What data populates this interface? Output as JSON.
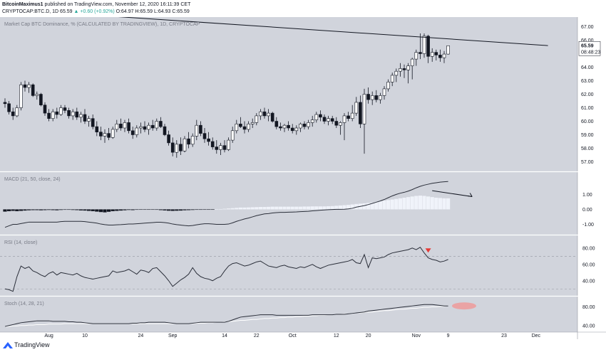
{
  "header": {
    "author": "BitcoinMaximus1",
    "published_text": "published on TradingView.com, November 12, 2020 16:11:39 CET",
    "symbol": "CRYPTOCAP:BTC.D, 1D",
    "last": "65.59",
    "change": "+0.60 (+0.92%)",
    "o": "O:64.97",
    "h": "H:65.59",
    "l": "L:64.93",
    "c": "C:65.59"
  },
  "footer": {
    "brand": "TradingView"
  },
  "colors": {
    "background": "#d1d4dc",
    "candle_outline": "#131722",
    "bull_fill": "#ffffff",
    "bear_fill": "#131722",
    "indicator_line": "#2a2e39",
    "signal_line": "#ffffff",
    "annotation_red": "#e53935",
    "ellipse_red": "#ef9a9a"
  },
  "chart_data": [
    {
      "type": "candlestick",
      "title": "Market Cap BTC Dominance, % (CALCULATED BY TRADINGVIEW), 1D, CRYPTOCAP",
      "price_label": "65.59",
      "timer_label": "08:48:23",
      "ylim": [
        56.5,
        67.5
      ],
      "yticks": [
        "57.00",
        "58.00",
        "59.00",
        "60.00",
        "61.00",
        "62.00",
        "63.00",
        "64.00",
        "65.00",
        "66.00",
        "67.00"
      ],
      "x_labels": [
        {
          "label": "Aug",
          "index": 11
        },
        {
          "label": "10",
          "index": 20
        },
        {
          "label": "24",
          "index": 34
        },
        {
          "label": "Sep",
          "index": 42
        },
        {
          "label": "14",
          "index": 55
        },
        {
          "label": "22",
          "index": 63
        },
        {
          "label": "Oct",
          "index": 72
        },
        {
          "label": "12",
          "index": 83
        },
        {
          "label": "20",
          "index": 91
        },
        {
          "label": "Nov",
          "index": 103
        },
        {
          "label": "9",
          "index": 111
        },
        {
          "label": "23",
          "index": 125
        },
        {
          "label": "Dec",
          "index": 133
        }
      ],
      "candles": [
        [
          61.4,
          61.7,
          61.0,
          61.3
        ],
        [
          61.3,
          61.5,
          60.5,
          60.7
        ],
        [
          60.7,
          61.0,
          60.1,
          60.4
        ],
        [
          60.4,
          61.2,
          60.3,
          61.0
        ],
        [
          61.0,
          62.9,
          60.8,
          62.7
        ],
        [
          62.7,
          63.0,
          62.2,
          62.5
        ],
        [
          62.5,
          62.9,
          62.1,
          62.7
        ],
        [
          62.7,
          62.8,
          61.8,
          61.9
        ],
        [
          61.9,
          62.2,
          61.6,
          62.0
        ],
        [
          62.0,
          62.1,
          61.1,
          61.2
        ],
        [
          61.2,
          61.4,
          60.4,
          60.6
        ],
        [
          60.6,
          60.9,
          60.0,
          60.2
        ],
        [
          60.2,
          60.9,
          60.0,
          60.7
        ],
        [
          60.7,
          61.0,
          60.2,
          60.5
        ],
        [
          60.5,
          61.2,
          60.4,
          61.0
        ],
        [
          61.0,
          61.2,
          60.6,
          60.8
        ],
        [
          60.8,
          61.0,
          60.2,
          60.4
        ],
        [
          60.4,
          60.9,
          60.1,
          60.7
        ],
        [
          60.7,
          61.0,
          60.1,
          60.3
        ],
        [
          60.3,
          60.7,
          59.9,
          60.5
        ],
        [
          60.5,
          60.9,
          59.8,
          60.0
        ],
        [
          60.0,
          60.4,
          59.6,
          60.2
        ],
        [
          60.2,
          60.5,
          59.4,
          59.6
        ],
        [
          59.6,
          60.0,
          58.9,
          59.2
        ],
        [
          59.2,
          59.6,
          58.6,
          58.9
        ],
        [
          58.9,
          59.4,
          58.4,
          59.1
        ],
        [
          59.1,
          59.5,
          58.6,
          58.8
        ],
        [
          58.8,
          59.6,
          58.7,
          59.4
        ],
        [
          59.4,
          60.1,
          59.2,
          59.8
        ],
        [
          59.8,
          60.2,
          59.3,
          59.5
        ],
        [
          59.5,
          60.1,
          59.2,
          59.9
        ],
        [
          59.9,
          60.2,
          59.1,
          59.3
        ],
        [
          59.3,
          59.6,
          58.7,
          59.0
        ],
        [
          59.0,
          59.7,
          58.8,
          59.5
        ],
        [
          59.5,
          59.9,
          59.1,
          59.6
        ],
        [
          59.6,
          60.0,
          59.2,
          59.4
        ],
        [
          59.4,
          59.9,
          59.0,
          59.7
        ],
        [
          59.7,
          60.1,
          59.3,
          59.5
        ],
        [
          59.5,
          60.2,
          59.3,
          60.0
        ],
        [
          60.0,
          60.3,
          59.5,
          59.6
        ],
        [
          59.6,
          59.8,
          58.9,
          59.0
        ],
        [
          59.0,
          59.3,
          58.2,
          58.4
        ],
        [
          58.4,
          58.8,
          57.4,
          57.7
        ],
        [
          57.7,
          58.6,
          57.3,
          58.3
        ],
        [
          58.3,
          58.8,
          57.5,
          57.8
        ],
        [
          57.8,
          58.9,
          57.7,
          58.7
        ],
        [
          58.7,
          59.2,
          58.0,
          58.3
        ],
        [
          58.3,
          59.1,
          58.1,
          58.9
        ],
        [
          58.9,
          60.1,
          58.6,
          59.7
        ],
        [
          59.7,
          60.0,
          58.9,
          59.1
        ],
        [
          59.1,
          59.5,
          58.4,
          58.7
        ],
        [
          58.7,
          59.2,
          58.2,
          58.5
        ],
        [
          58.5,
          58.8,
          57.9,
          58.1
        ],
        [
          58.1,
          58.6,
          57.6,
          57.9
        ],
        [
          57.9,
          58.4,
          57.5,
          58.2
        ],
        [
          58.2,
          58.6,
          57.7,
          57.9
        ],
        [
          57.9,
          58.8,
          57.8,
          58.6
        ],
        [
          58.6,
          59.6,
          58.4,
          59.3
        ],
        [
          59.3,
          60.1,
          59.1,
          59.8
        ],
        [
          59.8,
          60.3,
          59.5,
          59.6
        ],
        [
          59.6,
          60.0,
          59.1,
          59.4
        ],
        [
          59.4,
          60.0,
          59.2,
          59.8
        ],
        [
          59.8,
          60.2,
          59.5,
          59.9
        ],
        [
          59.9,
          60.6,
          59.7,
          60.4
        ],
        [
          60.4,
          60.9,
          60.1,
          60.7
        ],
        [
          60.7,
          61.0,
          60.2,
          60.4
        ],
        [
          60.4,
          60.9,
          60.0,
          60.6
        ],
        [
          60.6,
          60.7,
          59.9,
          60.0
        ],
        [
          60.0,
          60.3,
          59.4,
          59.6
        ],
        [
          59.6,
          59.9,
          59.3,
          59.5
        ],
        [
          59.5,
          59.8,
          59.2,
          59.7
        ],
        [
          59.7,
          60.0,
          59.3,
          59.5
        ],
        [
          59.5,
          59.8,
          59.1,
          59.3
        ],
        [
          59.3,
          59.7,
          59.0,
          59.5
        ],
        [
          59.5,
          59.9,
          59.2,
          59.8
        ],
        [
          59.8,
          60.0,
          59.4,
          59.6
        ],
        [
          59.6,
          60.1,
          59.4,
          59.9
        ],
        [
          59.9,
          60.4,
          59.6,
          60.1
        ],
        [
          60.1,
          60.7,
          59.9,
          60.5
        ],
        [
          60.5,
          60.8,
          60.0,
          60.3
        ],
        [
          60.3,
          60.5,
          59.8,
          60.0
        ],
        [
          60.0,
          60.4,
          59.7,
          60.2
        ],
        [
          60.2,
          60.4,
          59.8,
          60.0
        ],
        [
          60.0,
          60.3,
          59.5,
          59.7
        ],
        [
          59.7,
          60.0,
          59.0,
          59.9
        ],
        [
          59.9,
          60.6,
          58.6,
          60.4
        ],
        [
          60.4,
          60.7,
          60.0,
          60.2
        ],
        [
          60.2,
          61.2,
          60.0,
          60.6
        ],
        [
          60.6,
          61.8,
          60.4,
          61.4
        ],
        [
          61.4,
          61.9,
          59.5,
          59.8
        ],
        [
          59.8,
          62.4,
          57.6,
          62.0
        ],
        [
          62.0,
          62.5,
          61.3,
          61.6
        ],
        [
          61.6,
          62.2,
          61.2,
          61.9
        ],
        [
          61.9,
          62.3,
          61.4,
          61.6
        ],
        [
          61.6,
          62.1,
          61.3,
          61.9
        ],
        [
          61.9,
          62.6,
          61.6,
          62.4
        ],
        [
          62.4,
          63.1,
          62.2,
          62.9
        ],
        [
          62.9,
          63.6,
          62.6,
          63.4
        ],
        [
          63.4,
          63.9,
          62.9,
          63.7
        ],
        [
          63.7,
          64.3,
          63.3,
          63.9
        ],
        [
          63.9,
          64.2,
          63.2,
          63.8
        ],
        [
          63.8,
          64.3,
          62.8,
          64.1
        ],
        [
          64.1,
          64.7,
          63.1,
          64.6
        ],
        [
          64.6,
          65.3,
          64.1,
          65.1
        ],
        [
          65.1,
          66.5,
          64.6,
          65.0
        ],
        [
          65.0,
          66.5,
          64.7,
          66.3
        ],
        [
          66.3,
          66.4,
          64.3,
          64.8
        ],
        [
          64.8,
          65.4,
          64.4,
          65.1
        ],
        [
          65.1,
          65.3,
          64.5,
          64.9
        ],
        [
          64.9,
          65.3,
          64.4,
          64.7
        ],
        [
          64.7,
          65.2,
          64.3,
          64.97
        ],
        [
          64.97,
          65.59,
          64.93,
          65.59
        ]
      ],
      "trendline": [
        [
          0,
          68.3
        ],
        [
          136,
          65.6
        ]
      ]
    },
    {
      "type": "macd",
      "title": "MACD (21, 50, close, 24)",
      "ylim": [
        -1.5,
        2.3
      ],
      "yticks": [
        "1.00",
        "0.00",
        "-1.00"
      ],
      "macd": [
        -1.2,
        -1.1,
        -1.0,
        -1.0,
        -0.95,
        -0.9,
        -0.85,
        -0.85,
        -0.85,
        -0.85,
        -0.85,
        -0.85,
        -0.85,
        -0.85,
        -0.82,
        -0.8,
        -0.8,
        -0.8,
        -0.8,
        -0.8,
        -0.82,
        -0.85,
        -0.88,
        -0.92,
        -0.98,
        -1.02,
        -1.05,
        -1.05,
        -1.03,
        -1.02,
        -1.0,
        -0.98,
        -0.98,
        -0.96,
        -0.94,
        -0.92,
        -0.9,
        -0.88,
        -0.86,
        -0.86,
        -0.88,
        -0.92,
        -0.98,
        -1.02,
        -1.05,
        -1.08,
        -1.1,
        -1.08,
        -1.03,
        -0.99,
        -0.96,
        -0.96,
        -0.98,
        -1.0,
        -1.0,
        -1.0,
        -0.98,
        -0.9,
        -0.8,
        -0.72,
        -0.64,
        -0.58,
        -0.5,
        -0.42,
        -0.36,
        -0.3,
        -0.28,
        -0.24,
        -0.22,
        -0.2,
        -0.2,
        -0.19,
        -0.18,
        -0.17,
        -0.15,
        -0.14,
        -0.13,
        -0.1,
        -0.08,
        -0.06,
        -0.04,
        -0.02,
        -0.01,
        0.0,
        0.0,
        0.01,
        0.03,
        0.07,
        0.15,
        0.2,
        0.25,
        0.32,
        0.4,
        0.48,
        0.56,
        0.66,
        0.78,
        0.9,
        1.0,
        1.08,
        1.14,
        1.22,
        1.32,
        1.44,
        1.54,
        1.62,
        1.68,
        1.74,
        1.78,
        1.82,
        1.84,
        1.86
      ],
      "histogram": [
        -0.15,
        -0.12,
        -0.1,
        -0.12,
        -0.1,
        -0.08,
        -0.06,
        -0.05,
        -0.05,
        -0.06,
        -0.05,
        -0.04,
        -0.05,
        -0.06,
        -0.04,
        -0.03,
        -0.03,
        -0.04,
        -0.05,
        -0.07,
        -0.08,
        -0.1,
        -0.12,
        -0.15,
        -0.18,
        -0.2,
        -0.16,
        -0.12,
        -0.1,
        -0.08,
        -0.06,
        -0.04,
        -0.05,
        -0.03,
        -0.02,
        -0.02,
        -0.01,
        -0.02,
        -0.03,
        -0.05,
        -0.07,
        -0.09,
        -0.1,
        -0.09,
        -0.08,
        -0.06,
        -0.05,
        -0.04,
        -0.03,
        -0.03,
        -0.02,
        -0.02,
        -0.01,
        0.0,
        0.02,
        0.04,
        0.06,
        0.08,
        0.1,
        0.12,
        0.12,
        0.13,
        0.14,
        0.15,
        0.16,
        0.16,
        0.17,
        0.18,
        0.18,
        0.18,
        0.18,
        0.18,
        0.18,
        0.18,
        0.18,
        0.19,
        0.19,
        0.2,
        0.2,
        0.2,
        0.2,
        0.21,
        0.22,
        0.24,
        0.26,
        0.28,
        0.3,
        0.33,
        0.36,
        0.38,
        0.4,
        0.43,
        0.46,
        0.5,
        0.54,
        0.58,
        0.62,
        0.66,
        0.7,
        0.74,
        0.78,
        0.82,
        0.86,
        0.9,
        0.92,
        0.9,
        0.86,
        0.82,
        0.78,
        0.76,
        0.74,
        0.74
      ],
      "arrow": {
        "from": [
          107,
          1.25
        ],
        "to": [
          117,
          0.85
        ]
      }
    },
    {
      "type": "line",
      "title": "RSI (14, close)",
      "ylim": [
        25,
        92
      ],
      "yticks": [
        "80.00",
        "60.00",
        "40.00"
      ],
      "bands": [
        70,
        30
      ],
      "values": [
        30,
        29,
        27,
        45,
        58,
        55,
        57,
        52,
        50,
        47,
        45,
        49,
        51,
        47,
        50,
        49,
        48,
        47,
        49,
        46,
        44,
        43,
        42,
        43,
        44,
        45,
        46,
        52,
        50,
        51,
        52,
        54,
        51,
        48,
        53,
        52,
        50,
        55,
        56,
        51,
        46,
        40,
        33,
        37,
        41,
        44,
        48,
        56,
        49,
        45,
        43,
        42,
        40,
        43,
        45,
        52,
        58,
        61,
        62,
        60,
        58,
        59,
        61,
        63,
        64,
        61,
        58,
        57,
        56,
        58,
        59,
        57,
        56,
        55,
        57,
        56,
        58,
        60,
        57,
        55,
        57,
        59,
        60,
        61,
        62,
        63,
        64,
        66,
        62,
        61,
        72,
        56,
        68,
        67,
        68,
        69,
        72,
        74,
        75,
        76,
        77,
        78,
        80,
        78,
        81,
        74,
        68,
        66,
        65,
        63,
        64,
        66
      ],
      "marker": {
        "index": 106,
        "value": 77
      }
    },
    {
      "type": "line",
      "title": "Stoch (14, 28, 21)",
      "ylim": [
        32,
        96
      ],
      "yticks": [
        "80.00",
        "40.00"
      ],
      "k": [
        38,
        40,
        42,
        44,
        46,
        47,
        48,
        49,
        50,
        50,
        50,
        50,
        49,
        49,
        49,
        49,
        48,
        48,
        47,
        47,
        46,
        45,
        44,
        44,
        44,
        44,
        44,
        44,
        44,
        44,
        44,
        44,
        45,
        45,
        46,
        46,
        47,
        47,
        47,
        47,
        47,
        46,
        45,
        44,
        44,
        44,
        44,
        45,
        46,
        47,
        47,
        47,
        47,
        47,
        47,
        47,
        49,
        52,
        55,
        58,
        59,
        60,
        61,
        62,
        63,
        63,
        63,
        63,
        62,
        62,
        62,
        62,
        62,
        62,
        62,
        62,
        62,
        63,
        63,
        63,
        63,
        63,
        63,
        64,
        64,
        64,
        65,
        66,
        67,
        68,
        69,
        71,
        72,
        73,
        74,
        75,
        76,
        77,
        78,
        79,
        80,
        81,
        82,
        83,
        84,
        85,
        85,
        85,
        84,
        83,
        82,
        82
      ],
      "d": [
        38,
        38,
        39,
        39,
        40,
        40,
        41,
        41,
        42,
        42,
        42,
        43,
        43,
        43,
        43,
        44,
        44,
        44,
        44,
        44,
        44,
        44,
        44,
        44,
        44,
        44,
        44,
        44,
        44,
        44,
        44,
        44,
        44,
        44,
        44,
        44,
        44,
        44,
        44,
        44,
        44,
        44,
        44,
        44,
        44,
        44,
        44,
        44,
        45,
        45,
        45,
        46,
        46,
        47,
        47,
        48,
        48,
        49,
        50,
        51,
        51,
        52,
        53,
        53,
        54,
        55,
        55,
        56,
        56,
        57,
        57,
        58,
        58,
        59,
        59,
        60,
        60,
        61,
        61,
        62,
        62,
        63,
        63,
        64,
        64,
        65,
        65,
        66,
        67,
        67,
        68,
        69,
        69,
        70,
        71,
        72,
        72,
        73,
        74,
        75,
        75,
        76,
        77,
        77,
        78,
        79,
        79,
        80,
        80,
        81,
        81,
        82
      ],
      "highlight": {
        "index": 115,
        "value": 82
      }
    }
  ]
}
